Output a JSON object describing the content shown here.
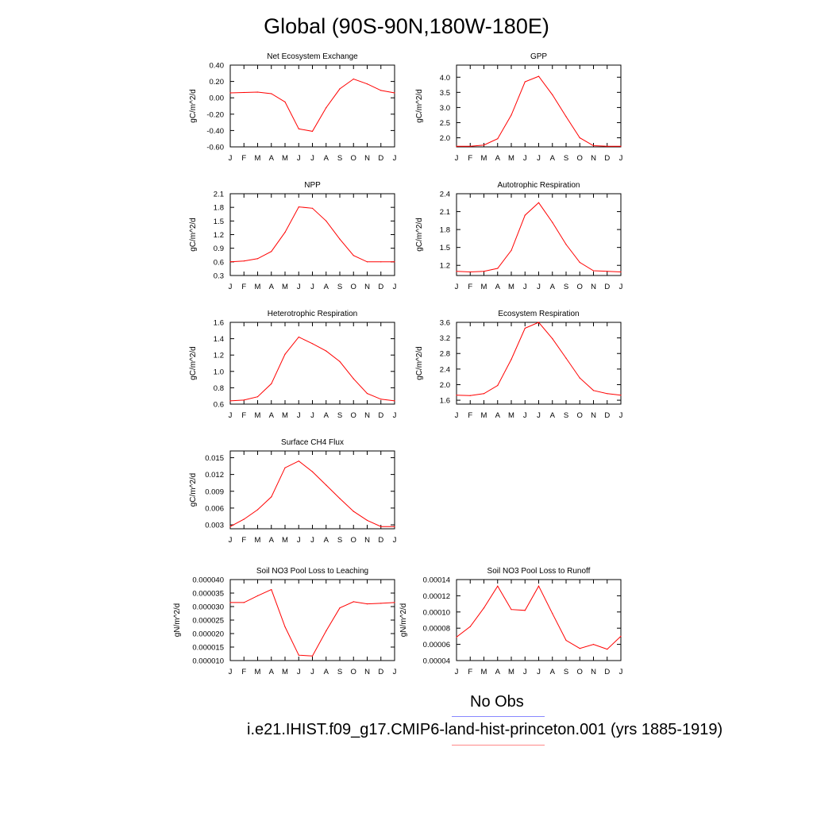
{
  "title": "Global (90S-90N,180W-180E)",
  "months": [
    "J",
    "F",
    "M",
    "A",
    "M",
    "J",
    "J",
    "A",
    "S",
    "O",
    "N",
    "D",
    "J"
  ],
  "line_color": "#ff0000",
  "chart_data": [
    {
      "type": "line",
      "title": "Net Ecosystem Exchange",
      "ylabel": "gC/m^2/d",
      "ylim": [
        -0.6,
        0.4
      ],
      "yticks": [
        -0.6,
        -0.4,
        -0.2,
        0.0,
        0.2,
        0.4
      ],
      "ytick_labels": [
        "-0.60",
        "-0.40",
        "-0.20",
        "0.00",
        "0.20",
        "0.40"
      ],
      "values": [
        0.06,
        0.065,
        0.07,
        0.05,
        -0.05,
        -0.38,
        -0.41,
        -0.12,
        0.11,
        0.23,
        0.17,
        0.09,
        0.06
      ]
    },
    {
      "type": "line",
      "title": "GPP",
      "ylabel": "gC/m^2/d",
      "ylim": [
        1.7,
        4.4
      ],
      "yticks": [
        2.0,
        2.5,
        3.0,
        3.5,
        4.0
      ],
      "ytick_labels": [
        "2.0",
        "2.5",
        "3.0",
        "3.5",
        "4.0"
      ],
      "values": [
        1.72,
        1.72,
        1.76,
        1.97,
        2.75,
        3.85,
        4.03,
        3.42,
        2.7,
        2.0,
        1.74,
        1.72,
        1.72
      ]
    },
    {
      "type": "line",
      "title": "NPP",
      "ylabel": "gC/m^2/d",
      "ylim": [
        0.3,
        2.1
      ],
      "yticks": [
        0.3,
        0.6,
        0.9,
        1.2,
        1.5,
        1.8,
        2.1
      ],
      "ytick_labels": [
        "0.3",
        "0.6",
        "0.9",
        "1.2",
        "1.5",
        "1.8",
        "2.1"
      ],
      "values": [
        0.6,
        0.62,
        0.67,
        0.83,
        1.25,
        1.81,
        1.78,
        1.5,
        1.1,
        0.74,
        0.6,
        0.6,
        0.6
      ]
    },
    {
      "type": "line",
      "title": "Autotrophic Respiration",
      "ylabel": "gC/m^2/d",
      "ylim": [
        1.03,
        2.4
      ],
      "yticks": [
        1.2,
        1.5,
        1.8,
        2.1,
        2.4
      ],
      "ytick_labels": [
        "1.2",
        "1.5",
        "1.8",
        "2.1",
        "2.4"
      ],
      "values": [
        1.1,
        1.09,
        1.1,
        1.15,
        1.45,
        2.04,
        2.25,
        1.92,
        1.55,
        1.25,
        1.11,
        1.1,
        1.09
      ]
    },
    {
      "type": "line",
      "title": "Heterotrophic Respiration",
      "ylabel": "gC/m^2/d",
      "ylim": [
        0.6,
        1.6
      ],
      "yticks": [
        0.6,
        0.8,
        1.0,
        1.2,
        1.4,
        1.6
      ],
      "ytick_labels": [
        "0.6",
        "0.8",
        "1.0",
        "1.2",
        "1.4",
        "1.6"
      ],
      "values": [
        0.64,
        0.65,
        0.69,
        0.85,
        1.21,
        1.42,
        1.34,
        1.25,
        1.12,
        0.91,
        0.73,
        0.66,
        0.64
      ]
    },
    {
      "type": "line",
      "title": "Ecosystem Respiration",
      "ylabel": "gC/m^2/d",
      "ylim": [
        1.5,
        3.6
      ],
      "yticks": [
        1.6,
        2.0,
        2.4,
        2.8,
        3.2,
        3.6
      ],
      "ytick_labels": [
        "1.6",
        "2.0",
        "2.4",
        "2.8",
        "3.2",
        "3.6"
      ],
      "values": [
        1.73,
        1.72,
        1.77,
        1.98,
        2.65,
        3.45,
        3.6,
        3.18,
        2.68,
        2.17,
        1.85,
        1.77,
        1.73
      ]
    },
    {
      "type": "line",
      "title": "Surface CH4 Flux",
      "ylabel": "gC/m^2/d",
      "ylim": [
        0.0023,
        0.0162
      ],
      "yticks": [
        0.003,
        0.006,
        0.009,
        0.012,
        0.015
      ],
      "ytick_labels": [
        "0.003",
        "0.006",
        "0.009",
        "0.012",
        "0.015"
      ],
      "values": [
        0.0027,
        0.004,
        0.0057,
        0.008,
        0.0132,
        0.0144,
        0.0125,
        0.0101,
        0.0077,
        0.0054,
        0.0038,
        0.0027,
        0.0027
      ]
    },
    {
      "type": "line",
      "title": "Soil NO3 Pool Loss to Leaching",
      "ylabel": "gN/m^2/d",
      "ylim": [
        1e-05,
        4e-05
      ],
      "yticks": [
        1e-05,
        1.5e-05,
        2e-05,
        2.5e-05,
        3e-05,
        3.5e-05,
        4e-05
      ],
      "ytick_labels": [
        "0.000010",
        "0.000015",
        "0.000020",
        "0.000025",
        "0.000030",
        "0.000035",
        "0.000040"
      ],
      "values": [
        3.15e-05,
        3.15e-05,
        3.4e-05,
        3.63e-05,
        2.25e-05,
        1.2e-05,
        1.17e-05,
        2.1e-05,
        2.95e-05,
        3.18e-05,
        3.1e-05,
        3.12e-05,
        3.15e-05
      ]
    },
    {
      "type": "line",
      "title": "Soil NO3 Pool Loss to Runoff",
      "ylabel": "gN/m^2/d",
      "ylim": [
        4e-05,
        0.00014
      ],
      "yticks": [
        4e-05,
        6e-05,
        8e-05,
        0.0001,
        0.00012,
        0.00014
      ],
      "ytick_labels": [
        "0.00004",
        "0.00006",
        "0.00008",
        "0.00010",
        "0.00012",
        "0.00014"
      ],
      "values": [
        6.9e-05,
        8.2e-05,
        0.000105,
        0.000132,
        0.000103,
        0.000102,
        0.000132,
        9.8e-05,
        6.5e-05,
        5.5e-05,
        6e-05,
        5.4e-05,
        7e-05
      ]
    }
  ],
  "legend": {
    "obs_label": "No Obs",
    "obs_color": "#8888ff",
    "model_label": "i.e21.IHIST.f09_g17.CMIP6-land-hist-princeton.001 (yrs 1885-1919)",
    "model_color": "#ff8888"
  }
}
